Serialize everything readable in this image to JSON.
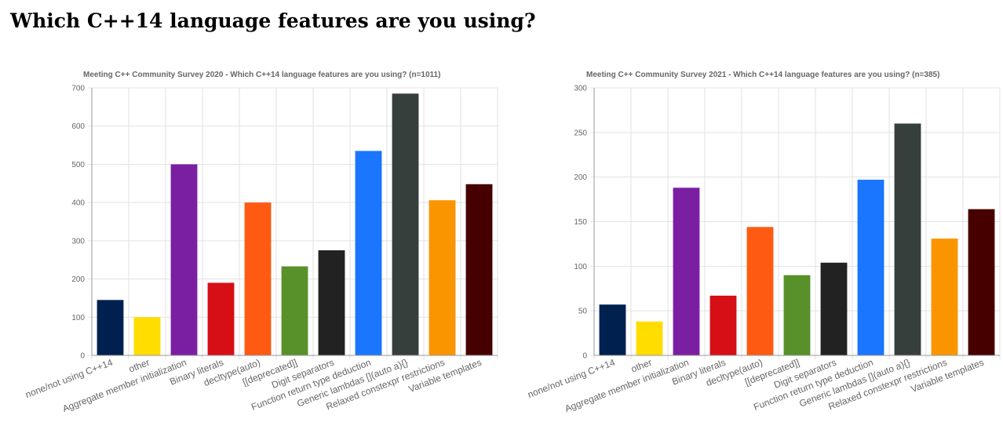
{
  "page": {
    "title": "Which C++14 language features are you using?"
  },
  "chart_data": [
    {
      "type": "bar",
      "title": "Meeting C++ Community Survey 2020 - Which C++14 language features are you using? (n=1011)",
      "categories": [
        "none/not using C++14",
        "other",
        "Aggregate member initialization",
        "Binary literals",
        "decltype(auto)",
        "[[deprecated]]",
        "Digit separators",
        "Function return type deduction",
        "Generic lambdas [](auto a){}",
        "Relaxed constexpr restrictions",
        "Variable templates"
      ],
      "values": [
        145,
        100,
        500,
        190,
        400,
        233,
        275,
        535,
        685,
        406,
        448
      ],
      "colors": [
        "#002050",
        "#ffdd00",
        "#7b1fa2",
        "#d50f15",
        "#ff5a12",
        "#58912a",
        "#222222",
        "#1a75ff",
        "#363f3c",
        "#fa9500",
        "#460000"
      ],
      "ylim": [
        0,
        700
      ],
      "yticks": [
        0,
        100,
        200,
        300,
        400,
        500,
        600,
        700
      ],
      "grid": true,
      "legend": "none"
    },
    {
      "type": "bar",
      "title": "Meeting C++ Community Survey 2021  - Which C++14 language features are you using? (n=385)",
      "categories": [
        "none/not using C++14",
        "other",
        "Aggregate member initialization",
        "Binary literals",
        "decltype(auto)",
        "[[deprecated]]",
        "Digit separators",
        "Function return type deduction",
        "Generic lambdas [](auto a){}",
        "Relaxed constexpr restrictions",
        "Variable templates"
      ],
      "values": [
        57,
        38,
        188,
        67,
        144,
        90,
        104,
        197,
        260,
        131,
        164
      ],
      "colors": [
        "#002050",
        "#ffdd00",
        "#7b1fa2",
        "#d50f15",
        "#ff5a12",
        "#58912a",
        "#222222",
        "#1a75ff",
        "#363f3c",
        "#fa9500",
        "#460000"
      ],
      "ylim": [
        0,
        300
      ],
      "yticks": [
        0,
        50,
        100,
        150,
        200,
        250,
        300
      ],
      "grid": true,
      "legend": "none"
    }
  ]
}
